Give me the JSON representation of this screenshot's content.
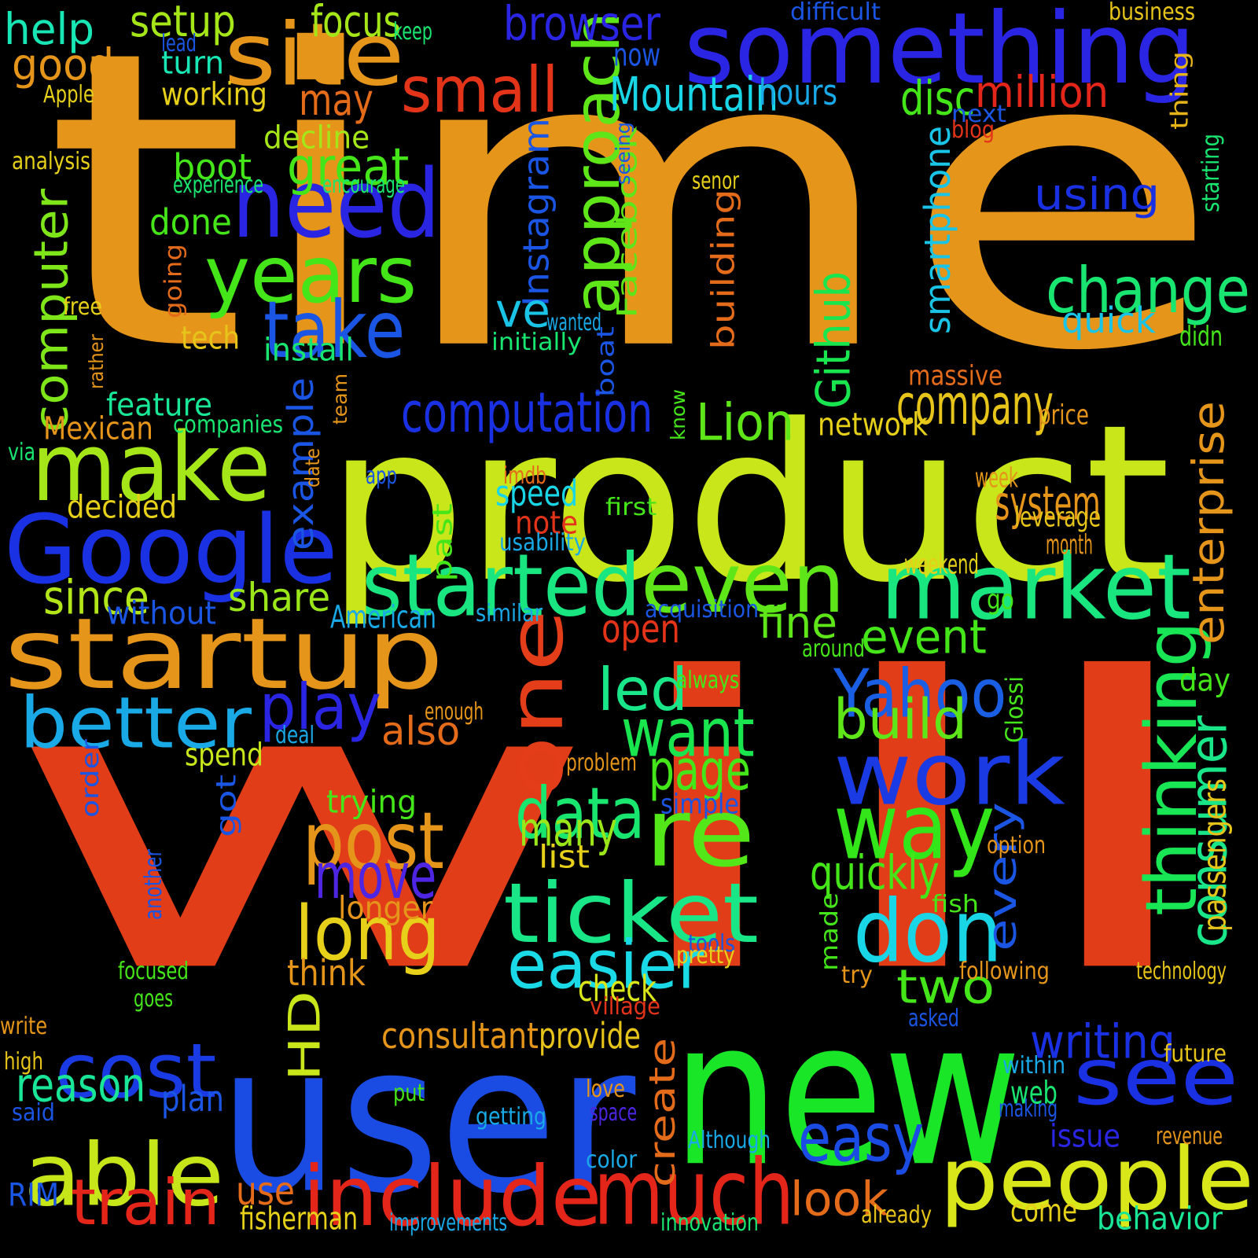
{
  "background": "#000000",
  "words": [
    {
      "text": "time",
      "color": "#e5951a"
    },
    {
      "text": "will",
      "color": "#e23d19"
    },
    {
      "text": "product",
      "color": "#c8e619"
    },
    {
      "text": "user",
      "color": "#1a4be3"
    },
    {
      "text": "new",
      "color": "#19e626"
    },
    {
      "text": "something",
      "color": "#2a25e3"
    },
    {
      "text": "startup",
      "color": "#e5951a"
    },
    {
      "text": "Google",
      "color": "#1a30e3"
    },
    {
      "text": "make",
      "color": "#a5e619"
    },
    {
      "text": "one",
      "color": "#e33d1a"
    },
    {
      "text": "started",
      "color": "#19e680"
    },
    {
      "text": "even",
      "color": "#5ee619"
    },
    {
      "text": "market",
      "color": "#19e67f"
    },
    {
      "text": "work",
      "color": "#1a3ae3"
    },
    {
      "text": "re",
      "color": "#53e619"
    },
    {
      "text": "way",
      "color": "#33e619"
    },
    {
      "text": "don",
      "color": "#19d6e6"
    },
    {
      "text": "ticket",
      "color": "#19e687"
    },
    {
      "text": "people",
      "color": "#d9e619"
    },
    {
      "text": "include",
      "color": "#e3251a"
    },
    {
      "text": "much",
      "color": "#e3251a"
    },
    {
      "text": "able",
      "color": "#c7e619"
    },
    {
      "text": "cost",
      "color": "#1a3ae3"
    },
    {
      "text": "site",
      "color": "#e5951a"
    },
    {
      "text": "need",
      "color": "#2a25e3"
    },
    {
      "text": "years",
      "color": "#45e619"
    },
    {
      "text": "take",
      "color": "#1a55e3"
    },
    {
      "text": "better",
      "color": "#19a9e6"
    },
    {
      "text": "post",
      "color": "#e5951a"
    },
    {
      "text": "long",
      "color": "#e6d019"
    },
    {
      "text": "data",
      "color": "#19e66e"
    },
    {
      "text": "want",
      "color": "#19e64e"
    },
    {
      "text": "thinking",
      "color": "#19e655"
    },
    {
      "text": "consumer",
      "color": "#19e688"
    },
    {
      "text": "change",
      "color": "#19e671"
    },
    {
      "text": "see",
      "color": "#1a30e3"
    },
    {
      "text": "small",
      "color": "#e3341a"
    },
    {
      "text": "approach",
      "color": "#5ee619"
    },
    {
      "text": "easier",
      "color": "#19dae6"
    },
    {
      "text": "Yahoo",
      "color": "#1a5ee3"
    },
    {
      "text": "move",
      "color": "#4d25e3"
    },
    {
      "text": "easy",
      "color": "#1a4be3"
    },
    {
      "text": "train",
      "color": "#e3251a"
    },
    {
      "text": "computation",
      "color": "#1a30e3"
    },
    {
      "text": "computer",
      "color": "#7ee619"
    },
    {
      "text": "play",
      "color": "#2a25e3"
    },
    {
      "text": "led",
      "color": "#19e688"
    },
    {
      "text": "company",
      "color": "#e6c419"
    },
    {
      "text": "Mountain",
      "color": "#19d6e6"
    },
    {
      "text": "browser",
      "color": "#2a25e3"
    },
    {
      "text": "every",
      "color": "#1a55e3"
    },
    {
      "text": "enterprise",
      "color": "#e5951a"
    },
    {
      "text": "Lion",
      "color": "#5ee619"
    },
    {
      "text": "great",
      "color": "#45e619"
    },
    {
      "text": "example",
      "color": "#1a55e3"
    },
    {
      "text": "build",
      "color": "#5ee619"
    },
    {
      "text": "page",
      "color": "#45e619"
    },
    {
      "text": "many",
      "color": "#9ae619"
    },
    {
      "text": "HD",
      "color": "#c8e619"
    },
    {
      "text": "writing",
      "color": "#1a30e3"
    },
    {
      "text": "Github",
      "color": "#19e64e"
    },
    {
      "text": "smartphone",
      "color": "#19c4e6"
    },
    {
      "text": "system",
      "color": "#e5951a"
    },
    {
      "text": "create",
      "color": "#e36b1a"
    },
    {
      "text": "reason",
      "color": "#19e696"
    },
    {
      "text": "look",
      "color": "#e36b1a"
    },
    {
      "text": "two",
      "color": "#45e619"
    },
    {
      "text": "event",
      "color": "#45e619"
    },
    {
      "text": "quickly",
      "color": "#45e619"
    },
    {
      "text": "Instagram",
      "color": "#1a55e3"
    },
    {
      "text": "since",
      "color": "#b2e619"
    },
    {
      "text": "disc",
      "color": "#45e619"
    },
    {
      "text": "million",
      "color": "#e3251a"
    },
    {
      "text": "using",
      "color": "#1a30e3"
    },
    {
      "text": "help",
      "color": "#19e6b5"
    },
    {
      "text": "setup",
      "color": "#a5e619"
    },
    {
      "text": "good",
      "color": "#e5951a"
    },
    {
      "text": "focus",
      "color": "#a5e619"
    },
    {
      "text": "may",
      "color": "#e36b1a"
    },
    {
      "text": "share",
      "color": "#9ae619"
    },
    {
      "text": "ve",
      "color": "#19c4e6"
    },
    {
      "text": "fine",
      "color": "#5ee619"
    },
    {
      "text": "use",
      "color": "#e36b1a"
    },
    {
      "text": "also",
      "color": "#e36b1a"
    },
    {
      "text": "open",
      "color": "#e3341a"
    },
    {
      "text": "quick",
      "color": "#19c4e6"
    },
    {
      "text": "speed",
      "color": "#19d6e6"
    },
    {
      "text": "plan",
      "color": "#1a55e3"
    },
    {
      "text": "check",
      "color": "#d9e619"
    },
    {
      "text": "consultant",
      "color": "#e5951a"
    },
    {
      "text": "provide",
      "color": "#e6c419"
    },
    {
      "text": "think",
      "color": "#e5951a"
    },
    {
      "text": "longer",
      "color": "#e5951a"
    },
    {
      "text": "boot",
      "color": "#45e619"
    },
    {
      "text": "done",
      "color": "#45e619"
    },
    {
      "text": "decline",
      "color": "#a5e619"
    },
    {
      "text": "working",
      "color": "#e6d019"
    },
    {
      "text": "turn",
      "color": "#19e6b5"
    },
    {
      "text": "building",
      "color": "#e36b1a"
    },
    {
      "text": "now",
      "color": "#1a55e3"
    },
    {
      "text": "hours",
      "color": "#19a9e6"
    },
    {
      "text": "without",
      "color": "#1a55e3"
    },
    {
      "text": "network",
      "color": "#e6d019"
    },
    {
      "text": "American",
      "color": "#19a9e6"
    },
    {
      "text": "Facebook",
      "color": "#5ee619"
    },
    {
      "text": "decided",
      "color": "#e6d019"
    },
    {
      "text": "feature",
      "color": "#19e696"
    },
    {
      "text": "Mexican",
      "color": "#e5951a"
    },
    {
      "text": "tech",
      "color": "#e6c419"
    },
    {
      "text": "install",
      "color": "#19e671"
    },
    {
      "text": "fisherman",
      "color": "#e6d019"
    },
    {
      "text": "web",
      "color": "#19e671"
    },
    {
      "text": "come",
      "color": "#e6d019"
    },
    {
      "text": "behavior",
      "color": "#19e696"
    },
    {
      "text": "passengers",
      "color": "#e6c419"
    },
    {
      "text": "issue",
      "color": "#2a25e3"
    },
    {
      "text": "note",
      "color": "#e3341a"
    },
    {
      "text": "spend",
      "color": "#c8e619"
    },
    {
      "text": "trying",
      "color": "#45e619"
    },
    {
      "text": "simple",
      "color": "#1a55e3"
    },
    {
      "text": "got",
      "color": "#1a55e3"
    },
    {
      "text": "list",
      "color": "#e6d019"
    },
    {
      "text": "made",
      "color": "#45e619"
    },
    {
      "text": "day",
      "color": "#45e619"
    },
    {
      "text": "past",
      "color": "#45e619"
    },
    {
      "text": "order",
      "color": "#1a55e3"
    },
    {
      "text": "boat",
      "color": "#1a55e3"
    },
    {
      "text": "RIM",
      "color": "#1a55e3"
    },
    {
      "text": "next",
      "color": "#1a55e3"
    },
    {
      "text": "blog",
      "color": "#e3341a"
    },
    {
      "text": "thing",
      "color": "#e6b419"
    },
    {
      "text": "starting",
      "color": "#19e671"
    },
    {
      "text": "massive",
      "color": "#e36b1a"
    },
    {
      "text": "price",
      "color": "#e5951a"
    },
    {
      "text": "didn",
      "color": "#45e619"
    },
    {
      "text": "week",
      "color": "#e5951a"
    },
    {
      "text": "leverage",
      "color": "#e6c419"
    },
    {
      "text": "month",
      "color": "#e5951a"
    },
    {
      "text": "weekend",
      "color": "#e6d019"
    },
    {
      "text": "go",
      "color": "#45e619"
    },
    {
      "text": "acquisition",
      "color": "#1a55e3"
    },
    {
      "text": "around",
      "color": "#45e619"
    },
    {
      "text": "always",
      "color": "#45e619"
    },
    {
      "text": "Glossi",
      "color": "#45e619"
    },
    {
      "text": "enough",
      "color": "#e5951a"
    },
    {
      "text": "deal",
      "color": "#19a9e6"
    },
    {
      "text": "problem",
      "color": "#e5951a"
    },
    {
      "text": "option",
      "color": "#e5951a"
    },
    {
      "text": "fish",
      "color": "#45e619"
    },
    {
      "text": "tools",
      "color": "#1a55e3"
    },
    {
      "text": "pretty",
      "color": "#e6d019"
    },
    {
      "text": "try",
      "color": "#e5951a"
    },
    {
      "text": "following",
      "color": "#e5951a"
    },
    {
      "text": "technology",
      "color": "#e6c419"
    },
    {
      "text": "village",
      "color": "#e3341a"
    },
    {
      "text": "asked",
      "color": "#1a55e3"
    },
    {
      "text": "future",
      "color": "#e6c419"
    },
    {
      "text": "within",
      "color": "#19a9e6"
    },
    {
      "text": "making",
      "color": "#1a55e3"
    },
    {
      "text": "love",
      "color": "#e5951a"
    },
    {
      "text": "put",
      "color": "#45e619"
    },
    {
      "text": "space",
      "color": "#4d25e3"
    },
    {
      "text": "getting",
      "color": "#19a9e6"
    },
    {
      "text": "Although",
      "color": "#19a9e6"
    },
    {
      "text": "revenue",
      "color": "#e5951a"
    },
    {
      "text": "color",
      "color": "#19a9e6"
    },
    {
      "text": "already",
      "color": "#e6c419"
    },
    {
      "text": "improvements",
      "color": "#19a9e6"
    },
    {
      "text": "innovation",
      "color": "#19e671"
    },
    {
      "text": "focused",
      "color": "#45e619"
    },
    {
      "text": "goes",
      "color": "#45e619"
    },
    {
      "text": "write",
      "color": "#e5951a"
    },
    {
      "text": "high",
      "color": "#e6c419"
    },
    {
      "text": "said",
      "color": "#1a55e3"
    },
    {
      "text": "another",
      "color": "#1a55e3"
    },
    {
      "text": "difficult",
      "color": "#1a55e3"
    },
    {
      "text": "business",
      "color": "#e6c419"
    },
    {
      "text": "keep",
      "color": "#19e671"
    },
    {
      "text": "lead",
      "color": "#1a55e3"
    },
    {
      "text": "Apple",
      "color": "#e6d019"
    },
    {
      "text": "analysis",
      "color": "#e6d019"
    },
    {
      "text": "experience",
      "color": "#19e671"
    },
    {
      "text": "encourage",
      "color": "#19e671"
    },
    {
      "text": "seeing",
      "color": "#1a55e3"
    },
    {
      "text": "senor",
      "color": "#e6d019"
    },
    {
      "text": "going",
      "color": "#e36b1a"
    },
    {
      "text": "free",
      "color": "#e6d019"
    },
    {
      "text": "wanted",
      "color": "#19a9e6"
    },
    {
      "text": "initially",
      "color": "#19e671"
    },
    {
      "text": "rather",
      "color": "#e5951a"
    },
    {
      "text": "team",
      "color": "#e5951a"
    },
    {
      "text": "companies",
      "color": "#19e671"
    },
    {
      "text": "via",
      "color": "#19e671"
    },
    {
      "text": "date",
      "color": "#e5951a"
    },
    {
      "text": "app",
      "color": "#1a55e3"
    },
    {
      "text": "imdb",
      "color": "#e36b1a"
    },
    {
      "text": "know",
      "color": "#45e619"
    },
    {
      "text": "first",
      "color": "#45e619"
    },
    {
      "text": "usability",
      "color": "#19a9e6"
    },
    {
      "text": "similar",
      "color": "#19a9e6"
    }
  ]
}
